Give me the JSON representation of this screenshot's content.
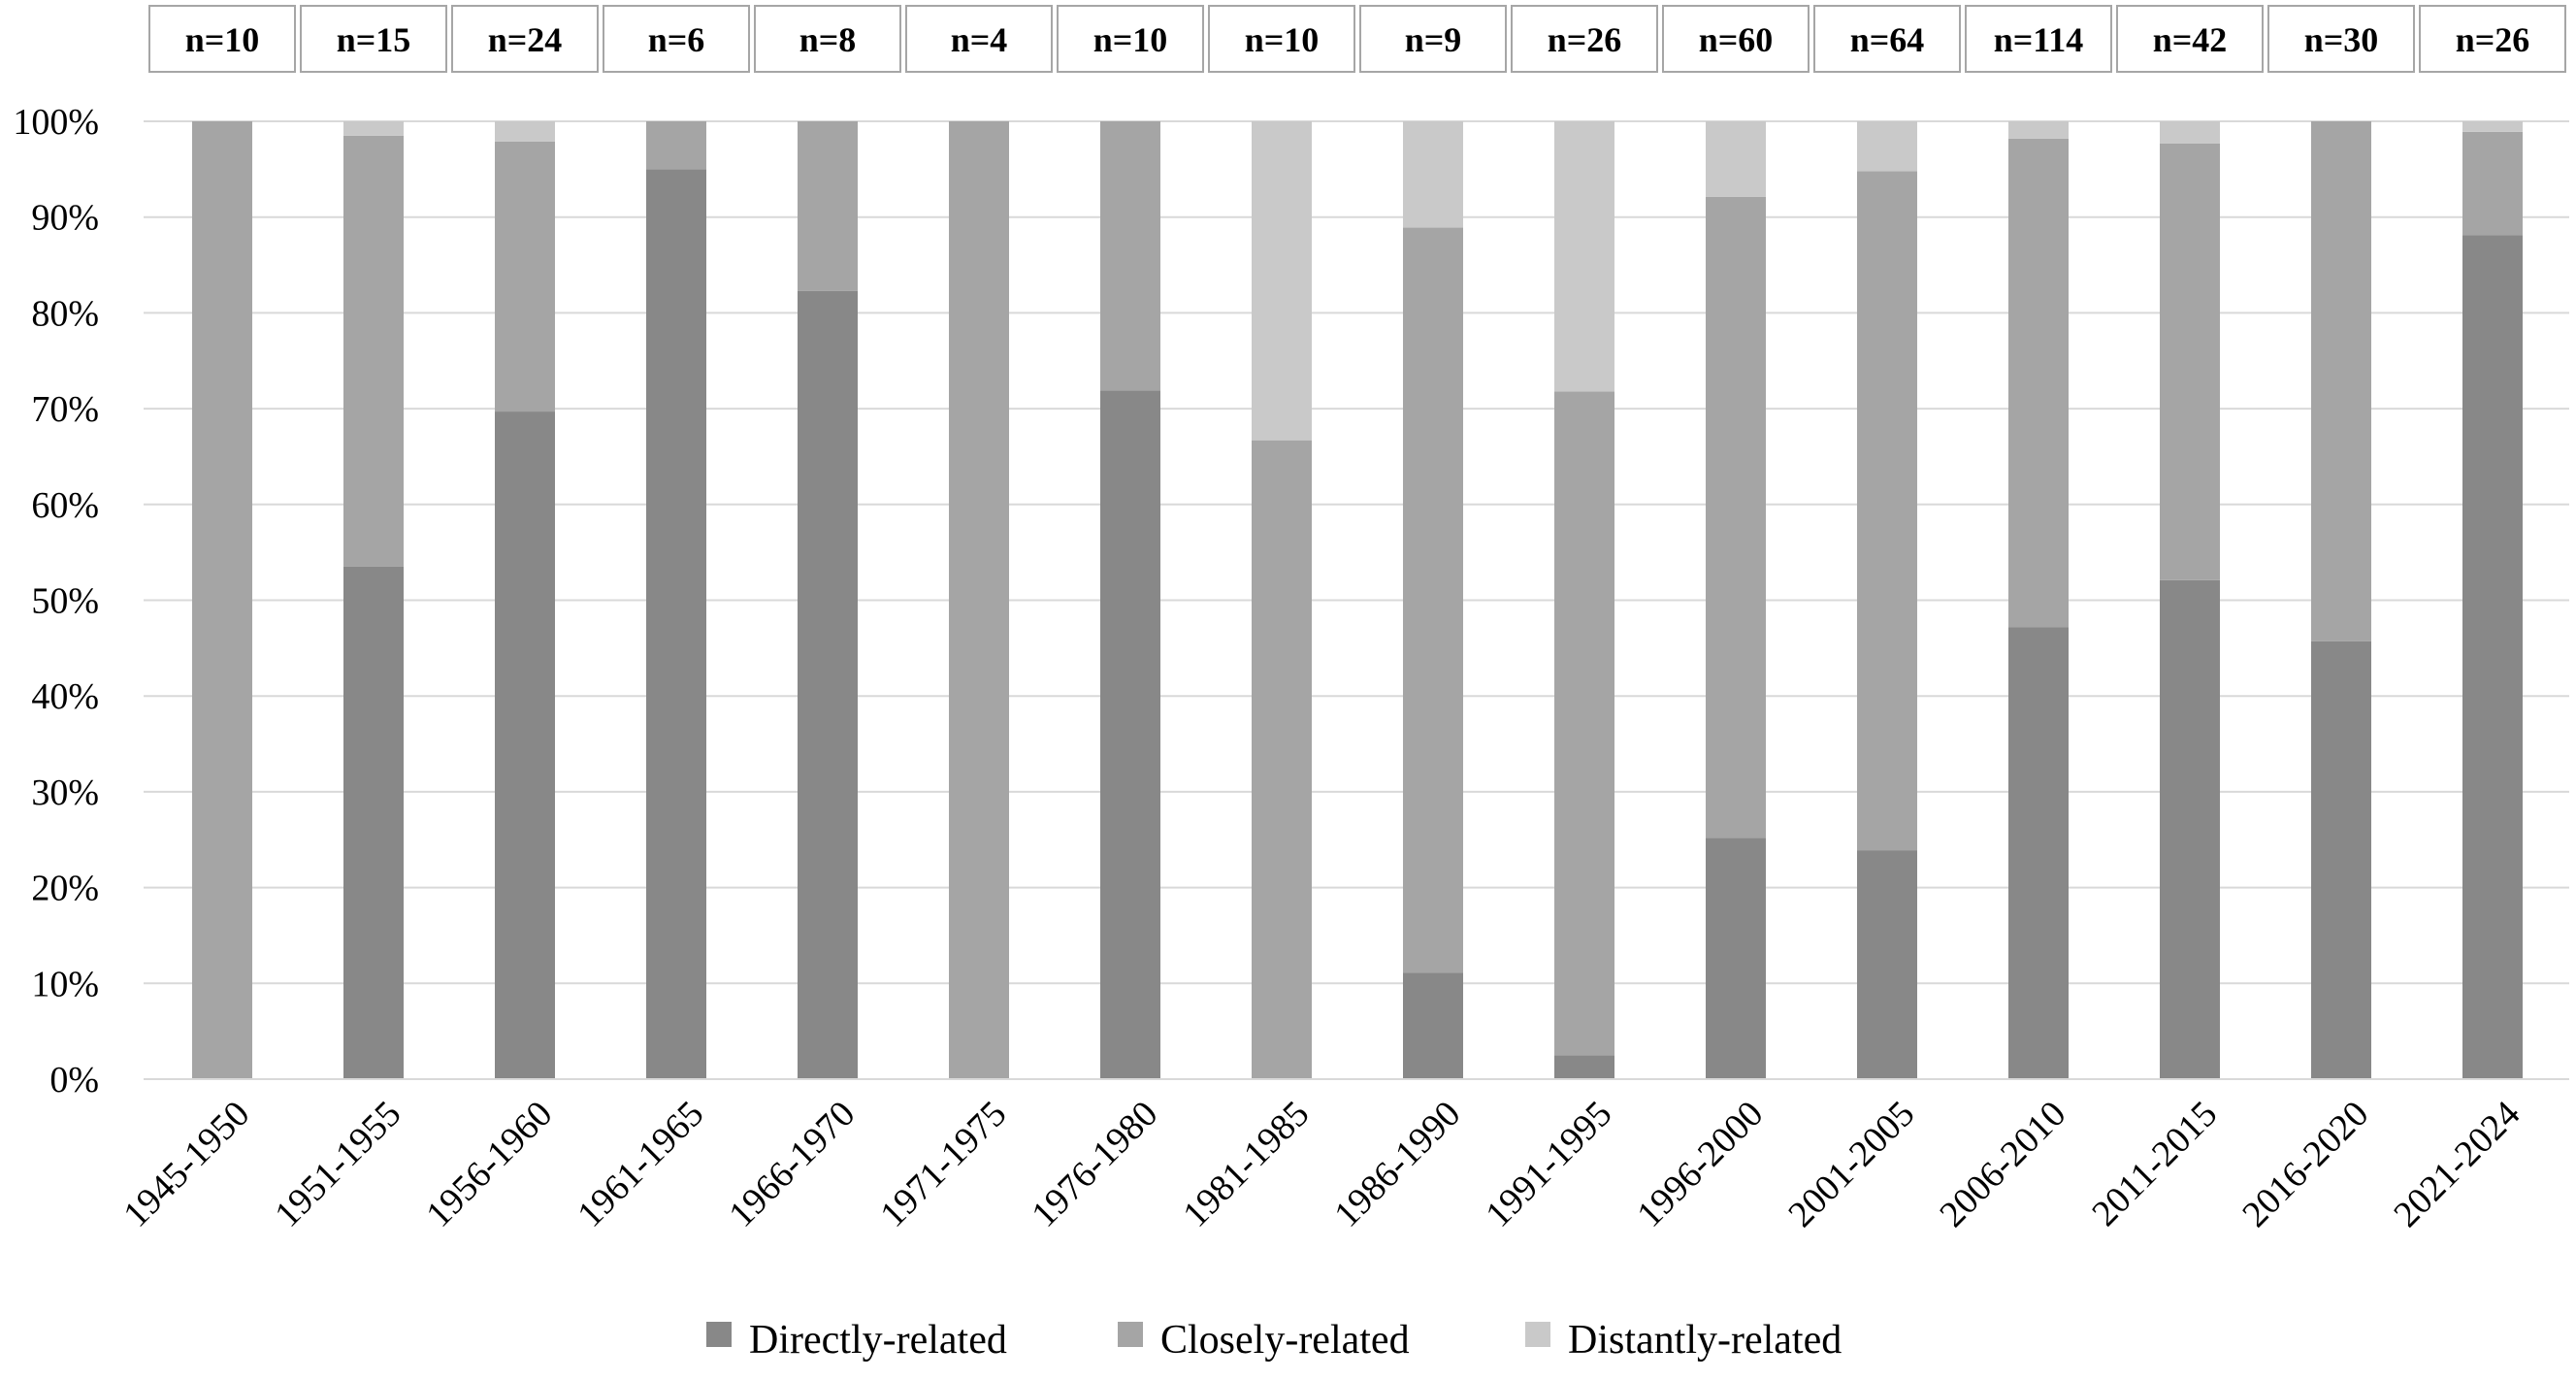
{
  "chart_data": {
    "type": "bar",
    "stacked": true,
    "percent": true,
    "title": "",
    "xlabel": "",
    "ylabel": "",
    "ylim": [
      0,
      100
    ],
    "yticks": [
      "0%",
      "10%",
      "20%",
      "30%",
      "40%",
      "50%",
      "60%",
      "70%",
      "80%",
      "90%",
      "100%"
    ],
    "grid": true,
    "legend_position": "bottom",
    "categories": [
      "1945-1950",
      "1951-1955",
      "1956-1960",
      "1961-1965",
      "1966-1970",
      "1971-1975",
      "1976-1980",
      "1981-1985",
      "1986-1990",
      "1991-1995",
      "1996-2000",
      "2001-2005",
      "2006-2010",
      "2011-2015",
      "2016-2020",
      "2021-2024"
    ],
    "sample_sizes": [
      "n=10",
      "n=15",
      "n=24",
      "n=6",
      "n=8",
      "n=4",
      "n=10",
      "n=10",
      "n=9",
      "n=26",
      "n=60",
      "n=64",
      "n=114",
      "n=42",
      "n=30",
      "n=26"
    ],
    "series": [
      {
        "name": "Directly-related",
        "color": "#888888",
        "values": [
          0,
          53.5,
          69.7,
          95,
          82.3,
          0,
          71.9,
          0,
          11.1,
          2.5,
          25.2,
          23.9,
          47.2,
          52.1,
          45.7,
          88.1
        ]
      },
      {
        "name": "Closely-related",
        "color": "#a5a5a5",
        "values": [
          100,
          45,
          28.2,
          5,
          17.7,
          100,
          28.1,
          66.7,
          77.8,
          69.3,
          66.9,
          70.9,
          51,
          45.6,
          54.3,
          10.8
        ]
      },
      {
        "name": "Distantly-related",
        "color": "#c9c9c9",
        "values": [
          0,
          1.5,
          2.1,
          0,
          0,
          0,
          0,
          33.3,
          11.1,
          28.2,
          7.9,
          5.2,
          1.8,
          2.3,
          0,
          1.1
        ]
      }
    ]
  }
}
